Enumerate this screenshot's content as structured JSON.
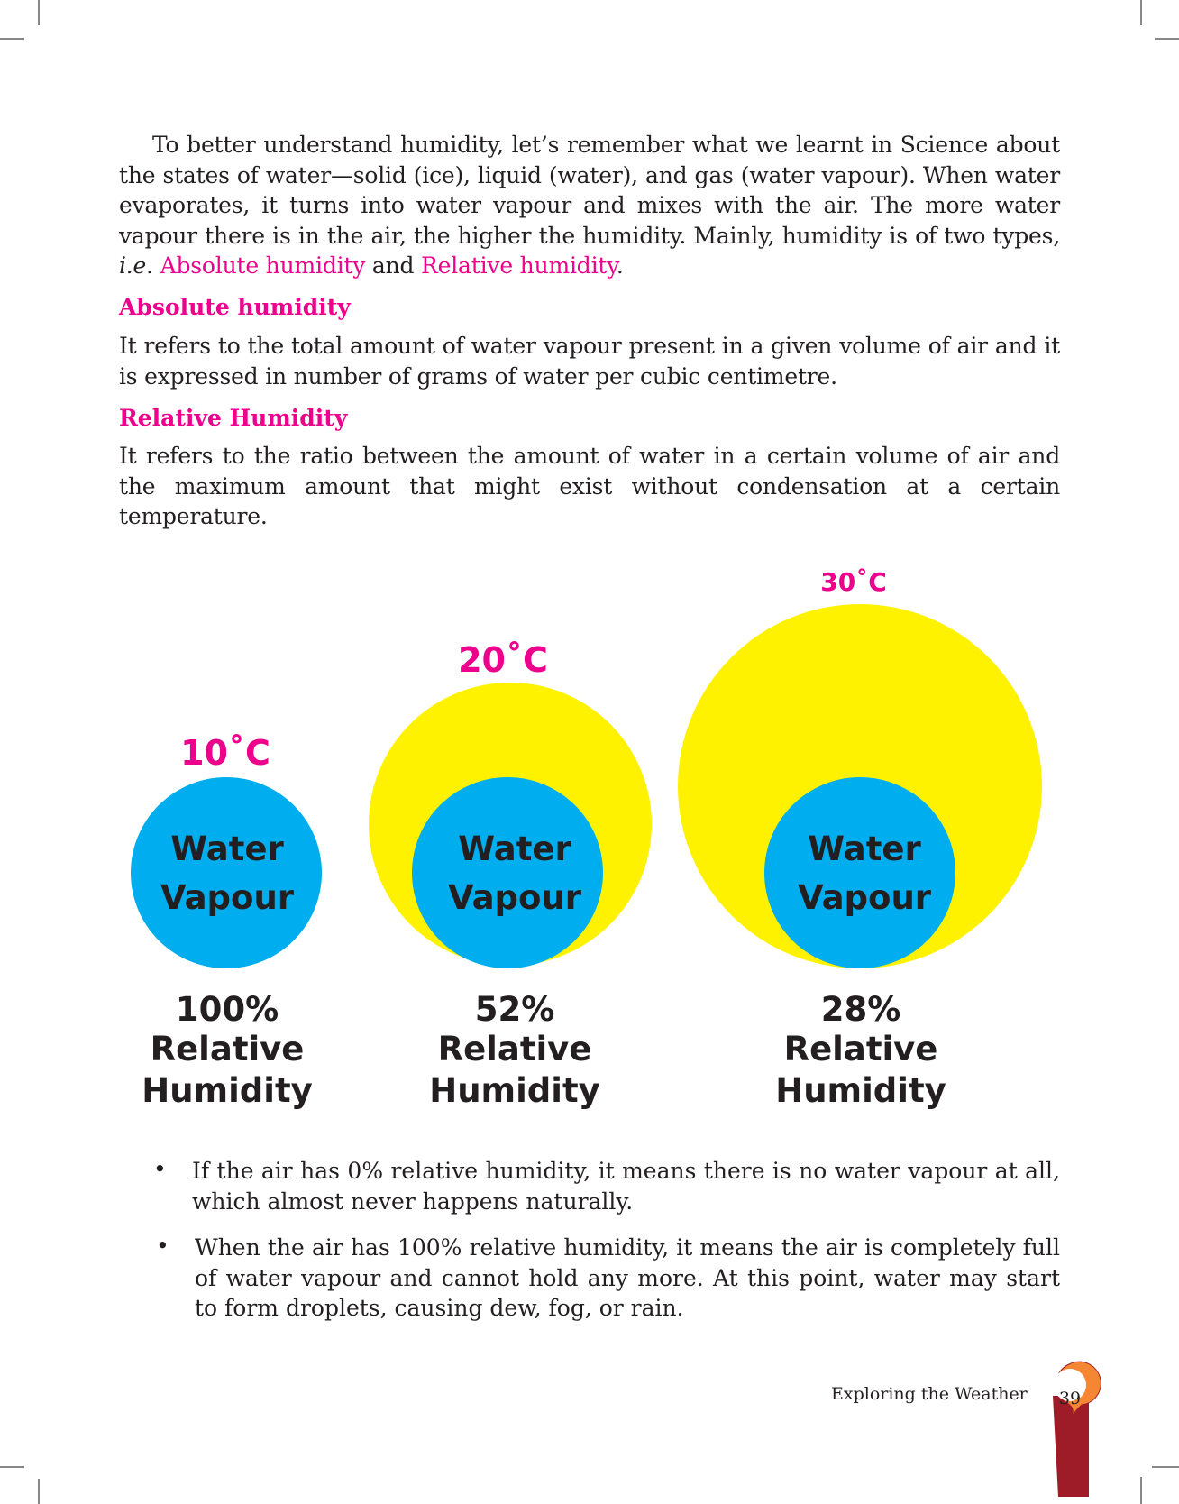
{
  "intro": {
    "text_before": "To better understand humidity, let’s remember what we learnt in Science about the states of water—solid (ice), liquid (water), and gas (water vapour). When water evaporates, it turns into water vapour and mixes with the air. The more water vapour there is in the air, the higher the humidity. Mainly, humidity is of two types, ",
    "ie": "i.e.",
    "term1": "Absolute humidity",
    "and": " and ",
    "term2": "Relative humidity",
    "end": "."
  },
  "absolute": {
    "heading": "Absolute humidity",
    "text": "It refers to the total amount of water vapour present in a given volume of air and it is expressed in number of grams of water per cubic centimetre."
  },
  "relative": {
    "heading": "Relative Humidity",
    "text": "It refers to the ratio between the amount of water in a certain volume of air and the maximum amount that might exist without condensation at a certain temperature."
  },
  "diagram": {
    "colors": {
      "air": "#fff200",
      "vapour": "#00aeef",
      "temp": "#ec008c"
    },
    "items": [
      {
        "temp": "10˚C",
        "vapour1": "Water",
        "vapour2": "Vapour",
        "pct": "100%",
        "l1": "Relative",
        "l2": "Humidity"
      },
      {
        "temp": "20˚C",
        "vapour1": "Water",
        "vapour2": "Vapour",
        "pct": "52%",
        "l1": "Relative",
        "l2": "Humidity"
      },
      {
        "temp": "30˚C",
        "vapour1": "Water",
        "vapour2": "Vapour",
        "pct": "28%",
        "l1": "Relative",
        "l2": "Humidity"
      }
    ]
  },
  "bullets": [
    "If the air has 0% relative humidity, it means there is no water vapour at all, which almost never happens naturally.",
    "When the air has 100% relative humidity, it means the air is completely full of water vapour and cannot hold any more. At this point, water may start to form droplets, causing dew, fog, or rain."
  ],
  "footer": {
    "chapter": "Exploring the Weather",
    "page": "39"
  }
}
